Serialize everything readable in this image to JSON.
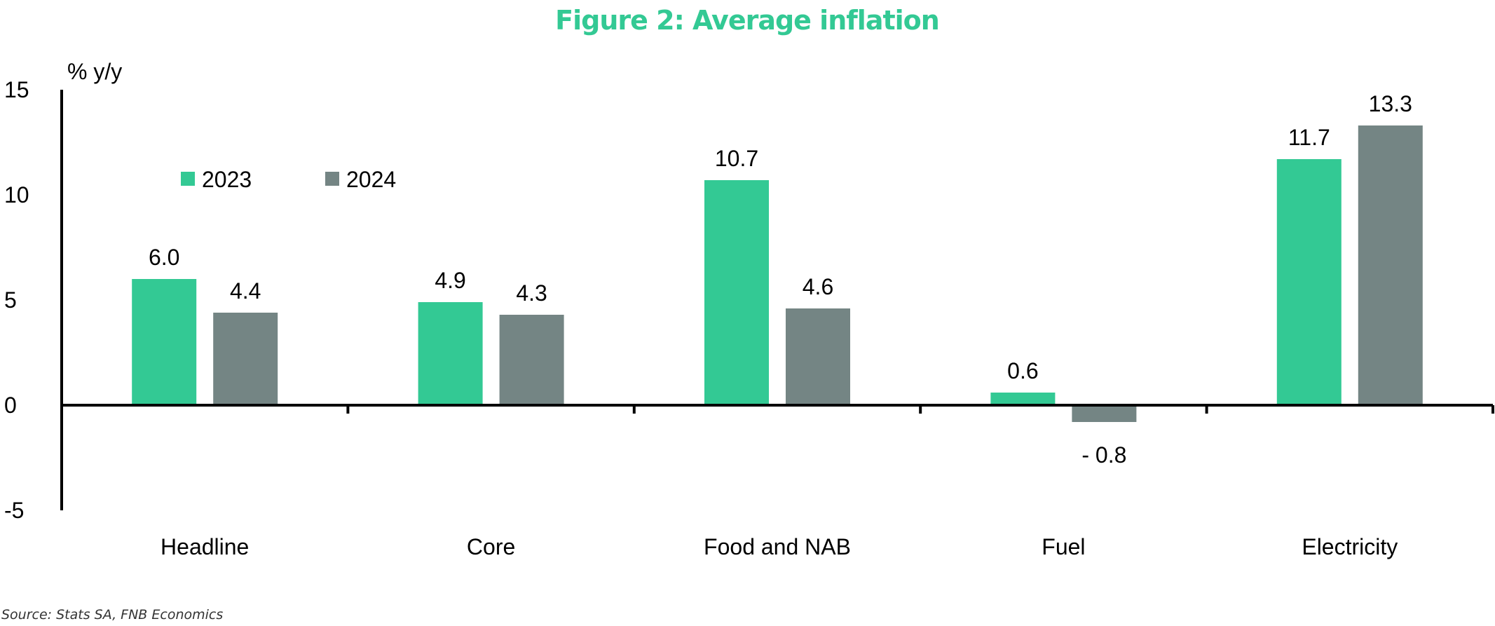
{
  "chart_data": {
    "type": "bar",
    "title": "Figure 2: Average inflation",
    "ylabel": "% y/y",
    "xlabel": "",
    "categories": [
      "Headline",
      "Core",
      "Food and NAB",
      "Fuel",
      "Electricity"
    ],
    "series": [
      {
        "name": "2023",
        "values": [
          6.0,
          4.9,
          10.7,
          0.6,
          11.7
        ],
        "labels": [
          "6.0",
          "4.9",
          "10.7",
          "0.6",
          "11.7"
        ],
        "color": "#33c994"
      },
      {
        "name": "2024",
        "values": [
          4.4,
          4.3,
          4.6,
          -0.8,
          13.3
        ],
        "labels": [
          "4.4",
          "4.3",
          "4.6",
          "- 0.8",
          "13.3"
        ],
        "color": "#748584"
      }
    ],
    "ylim": [
      -5,
      15
    ],
    "yticks": [
      "15",
      "10",
      "5",
      "0",
      "-5"
    ],
    "grid": false,
    "legend": "top-left",
    "source": "Source: Stats SA, FNB Economics",
    "colors": {
      "title": "#33c994",
      "axis": "#000000"
    }
  }
}
